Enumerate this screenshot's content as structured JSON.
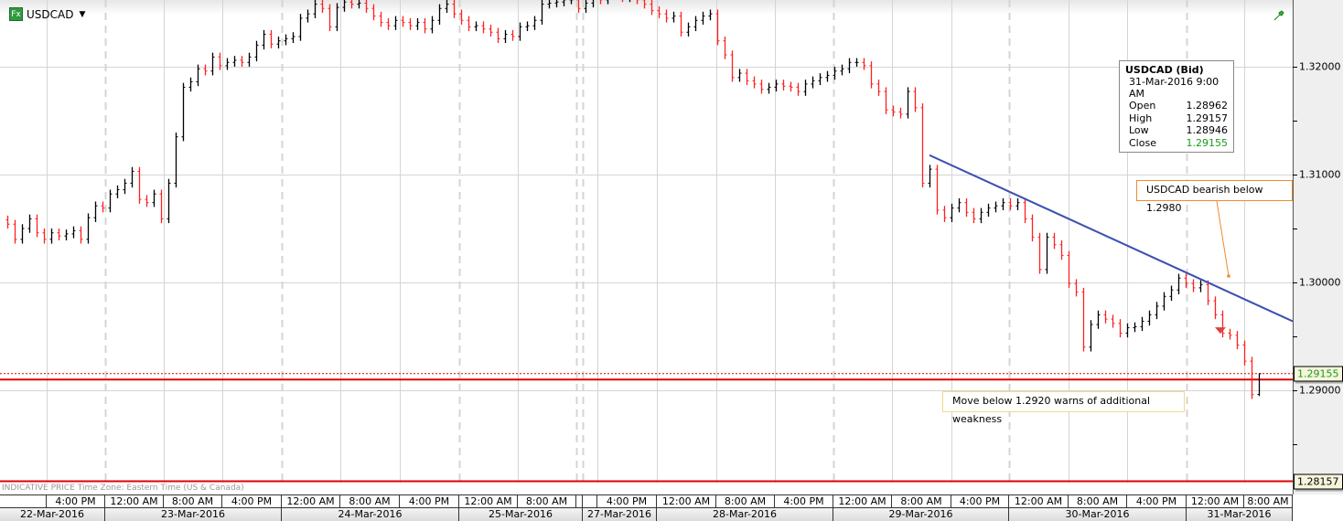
{
  "header": {
    "symbol": "USDCAD",
    "badge": "Fx",
    "dropdown_icon": "caret-down-icon",
    "corner_icon": "green-pin-icon"
  },
  "tooltip": {
    "title": "USDCAD (Bid)",
    "datetime": "31-Mar-2016 9:00 AM",
    "rows": [
      {
        "label": "Open",
        "value": "1.28962"
      },
      {
        "label": "High",
        "value": "1.29157"
      },
      {
        "label": "Low",
        "value": "1.28946"
      },
      {
        "label": "Close",
        "value": "1.29155"
      }
    ],
    "close_color": "#1a9a1a"
  },
  "annotations": {
    "bearish": "USDCAD bearish below 1.2980",
    "weakness": "Move below 1.2920 warns of additional weakness"
  },
  "status": "INDICATIVE PRICE   Time Zone: Eastern Time (US & Canada)",
  "price_labels": {
    "current": "1.29155",
    "lower": "1.28157"
  },
  "time_labels": [
    "",
    "4:00 PM",
    "12:00 AM",
    "8:00 AM",
    "4:00 PM",
    "12:00 AM",
    "8:00 AM",
    "4:00 PM",
    "12:00 AM",
    "8:00 AM",
    "",
    "",
    "4:00 PM",
    "12:00 AM",
    "8:00 AM",
    "4:00 PM",
    "12:00 AM",
    "8:00 AM",
    "4:00 PM",
    "12:00 AM",
    "8:00 AM",
    "4:00 PM",
    "12:00 AM",
    "8:00 AM"
  ],
  "date_labels": [
    "22-Mar-2016",
    "23-Mar-2016",
    "24-Mar-2016",
    "25-Mar-2016",
    "27-Mar-2016",
    "28-Mar-2016",
    "29-Mar-2016",
    "30-Mar-2016",
    "31-Mar-2016"
  ],
  "chart_data": {
    "type": "ohlc-bar",
    "symbol": "USDCAD",
    "up_color": "#000000",
    "down_color": "#ff2020",
    "y_ticks": [
      "1.32000",
      "1.31000",
      "1.30000",
      "1.29000"
    ],
    "y_tick_values": [
      1.32,
      1.31,
      1.3,
      1.29
    ],
    "ylim": [
      1.2804,
      1.3262
    ],
    "grid": true,
    "close": [
      1.3054,
      1.304,
      1.305,
      1.3059,
      1.3046,
      1.304,
      1.3046,
      1.3043,
      1.3045,
      1.3048,
      1.304,
      1.306,
      1.3071,
      1.3069,
      1.3082,
      1.3086,
      1.3092,
      1.3103,
      1.3077,
      1.3074,
      1.3082,
      1.3059,
      1.3092,
      1.3135,
      1.3181,
      1.3186,
      1.3198,
      1.3196,
      1.3209,
      1.3201,
      1.3204,
      1.3206,
      1.3204,
      1.3209,
      1.322,
      1.323,
      1.3221,
      1.3224,
      1.3226,
      1.3228,
      1.3245,
      1.3249,
      1.3258,
      1.3254,
      1.3237,
      1.3255,
      1.326,
      1.3258,
      1.3259,
      1.3254,
      1.3247,
      1.3241,
      1.3238,
      1.3243,
      1.3241,
      1.3238,
      1.3241,
      1.3235,
      1.3243,
      1.3254,
      1.3258,
      1.3249,
      1.3243,
      1.3237,
      1.3238,
      1.3235,
      1.3232,
      1.3226,
      1.323,
      1.3228,
      1.3237,
      1.3238,
      1.3243,
      1.3258,
      1.3259,
      1.326,
      1.3262,
      1.3262,
      1.3254,
      1.3259,
      1.3265,
      1.3262,
      1.3269,
      1.3266,
      1.3264,
      1.3266,
      1.3262,
      1.3258,
      1.3252,
      1.3249,
      1.3245,
      1.3247,
      1.3232,
      1.3237,
      1.3243,
      1.3247,
      1.3249,
      1.3224,
      1.3211,
      1.319,
      1.3194,
      1.3187,
      1.3184,
      1.3179,
      1.3181,
      1.3184,
      1.3182,
      1.3181,
      1.3177,
      1.3184,
      1.3187,
      1.319,
      1.3192,
      1.3196,
      1.3198,
      1.3204,
      1.3204,
      1.3201,
      1.3184,
      1.3177,
      1.316,
      1.3158,
      1.3156,
      1.3177,
      1.3162,
      1.3092,
      1.3105,
      1.3067,
      1.306,
      1.3069,
      1.3074,
      1.3065,
      1.3059,
      1.3065,
      1.3069,
      1.3071,
      1.3074,
      1.3071,
      1.3074,
      1.3059,
      1.3042,
      1.3012,
      1.3042,
      1.3035,
      1.3025,
      1.2999,
      1.2991,
      1.294,
      1.2961,
      1.297,
      1.2966,
      1.2962,
      1.2953,
      1.2958,
      1.2959,
      1.2964,
      1.297,
      1.2978,
      1.2987,
      1.2993,
      1.3004,
      1.2999,
      1.2995,
      1.2998,
      1.2983,
      1.297,
      1.2953,
      1.2951,
      1.2942,
      1.2927,
      1.2896,
      1.29155
    ],
    "last_bar": {
      "open": 1.28962,
      "high": 1.29157,
      "low": 1.28946,
      "close": 1.29155
    },
    "trend_line": {
      "start_bar": 126,
      "start_price": 1.3118,
      "end_price_at_right_edge": 1.2964,
      "color": "#3a4fb0"
    },
    "horizontal_lines": [
      {
        "price": 1.291,
        "color": "#e00000",
        "style": "solid"
      },
      {
        "price": 1.28157,
        "color": "#e00000",
        "style": "solid"
      },
      {
        "price": 1.29155,
        "color": "#e00000",
        "style": "dotted"
      }
    ],
    "sell_marker_price": 1.2955
  }
}
